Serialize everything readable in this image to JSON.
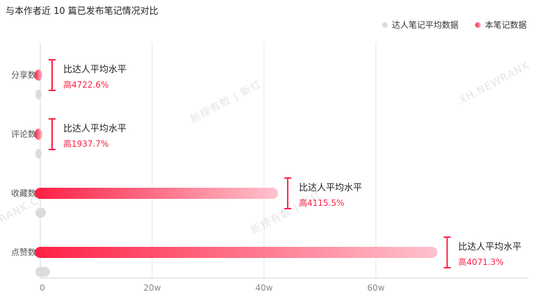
{
  "title": "与本作者近 10 篇已发布笔记情况对比",
  "legend": {
    "items": [
      {
        "label": "达人笔记平均数据",
        "color": "#dcdcdc"
      },
      {
        "label": "本笔记数据",
        "color": "#ff1f44"
      }
    ]
  },
  "watermarks": [
    "新榜有数 | 新红",
    "XH.NEWRANK",
    "新榜有数 | 新红",
    "RANK.CN"
  ],
  "chart_data": {
    "type": "bar",
    "orientation": "horizontal",
    "categories": [
      "分享数",
      "评论数",
      "收藏数",
      "点赞数"
    ],
    "series": [
      {
        "name": "本笔记数据",
        "values": [
          1900,
          1300,
          425000,
          710000
        ]
      },
      {
        "name": "达人笔记平均数据",
        "values": [
          40,
          65,
          10100,
          17000
        ]
      }
    ],
    "xticks": [
      "0",
      "20w",
      "40w",
      "60w"
    ],
    "xlim": [
      0,
      760000
    ],
    "annotations": [
      {
        "text": "比达人平均水平",
        "value": "高4722.6%"
      },
      {
        "text": "比达人平均水平",
        "value": "高1937.7%"
      },
      {
        "text": "比达人平均水平",
        "value": "高4115.5%"
      },
      {
        "text": "比达人平均水平",
        "value": "高4071.3%"
      }
    ],
    "colors": {
      "primary": "#ff1f44",
      "primary_light": "#ffc2cd",
      "average": "#dcdcdc",
      "grid": "#e6e6e6"
    }
  }
}
